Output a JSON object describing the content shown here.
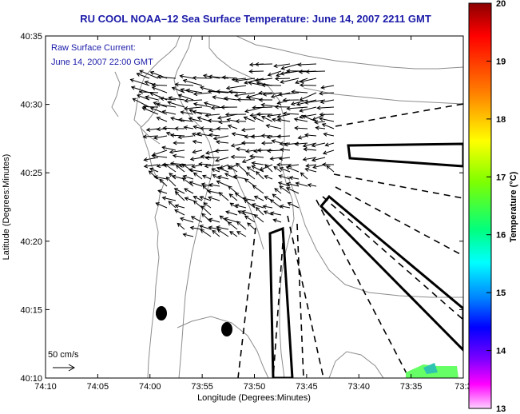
{
  "title": "RU COOL   NOAA–12  Sea Surface Temperature:  June 14, 2007 2211 GMT",
  "annotation_line1": "Raw Surface Current:",
  "annotation_line2": "June 14, 2007 22:00 GMT",
  "x_axis": {
    "label": "Longitude (Degrees:Minutes)",
    "ticks": [
      "74:10",
      "74:05",
      "74:00",
      "73:55",
      "73:50",
      "73:45",
      "73:40",
      "73:35",
      "73:3"
    ]
  },
  "y_axis": {
    "label": "Latitude (Degrees:Minutes)",
    "ticks": [
      "40:35",
      "40:30",
      "40:25",
      "40:20",
      "40:15",
      "40:10"
    ]
  },
  "colorbar": {
    "label": "Temperature (°C)",
    "ticks": [
      "20",
      "19",
      "18",
      "17",
      "16",
      "15",
      "14",
      "13"
    ],
    "colors": [
      "#8b0000",
      "#ff0000",
      "#ff7f00",
      "#ffff00",
      "#7fff00",
      "#00ff7f",
      "#00ffff",
      "#007fff",
      "#0000ff",
      "#7f00ff",
      "#ff00ff",
      "#ffd0ff"
    ]
  },
  "scale_label": "50 cm/s",
  "colors": {
    "title_text": "#1a1aa8",
    "contour": "#8c8c8c",
    "arrow": "#000000",
    "sst_patch": "#66ff66"
  }
}
